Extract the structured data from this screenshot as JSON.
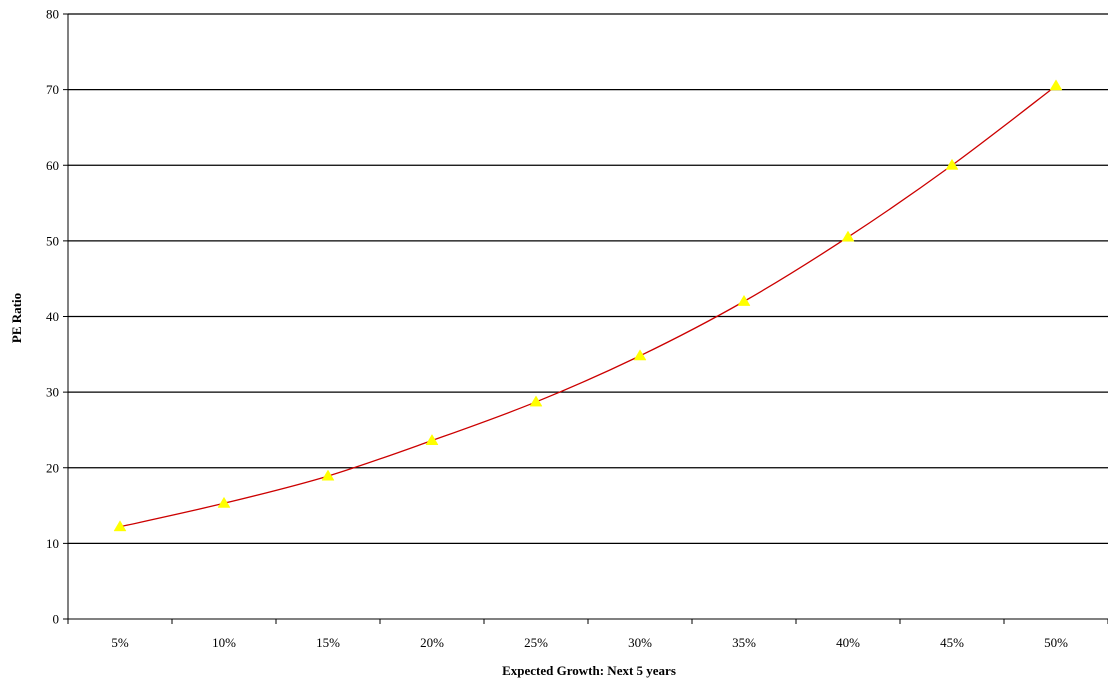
{
  "chart_data": {
    "type": "line",
    "title": "",
    "xlabel": "Expected Growth: Next 5 years",
    "ylabel": "PE Ratio",
    "categories": [
      "5%",
      "10%",
      "15%",
      "20%",
      "25%",
      "30%",
      "35%",
      "40%",
      "45%",
      "50%"
    ],
    "series": [
      {
        "values": [
          12.2,
          15.3,
          18.9,
          23.6,
          28.7,
          34.8,
          42.0,
          50.5,
          60.0,
          70.5
        ],
        "line_color": "#cc0000",
        "marker": "triangle",
        "marker_color": "#ffff00"
      }
    ],
    "ylim": [
      0,
      80
    ],
    "yticks": [
      "0",
      "10",
      "20",
      "30",
      "40",
      "50",
      "60",
      "70",
      "80"
    ],
    "grid": true,
    "legend": "none"
  }
}
